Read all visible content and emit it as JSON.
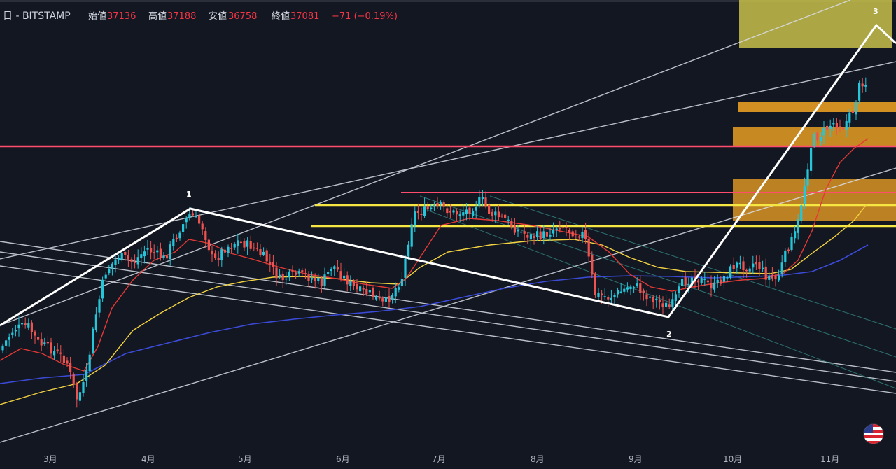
{
  "header": {
    "symbol": "日 - BITSTAMP",
    "open_label": "始値",
    "open_value": "37136",
    "high_label": "高値",
    "high_value": "37188",
    "low_label": "安値",
    "low_value": "36758",
    "close_label": "終値",
    "close_value": "37081",
    "change": "−71 (−0.19%)"
  },
  "flag_icon": "us-flag-icon",
  "chart_data": {
    "type": "candlestick",
    "title": "",
    "xlabel": "",
    "ylabel": "",
    "x_ticks": [
      "3月",
      "4月",
      "5月",
      "6月",
      "7月",
      "8月",
      "9月",
      "10月",
      "11月"
    ],
    "wave_labels": [
      "1",
      "2",
      "3"
    ],
    "colors": {
      "background": "#131722",
      "up": "#26c6da",
      "down": "#ef5350",
      "ma_fast": "#e53935",
      "ma_mid": "#f5d442",
      "ma_slow": "#3b4bd8",
      "wave": "#ffffff",
      "resistance": "#ff4d6d",
      "support": "#f5e642",
      "zone": "#f5a623",
      "target_zone": "#c8c04a"
    },
    "grid": false,
    "legend": "none"
  }
}
